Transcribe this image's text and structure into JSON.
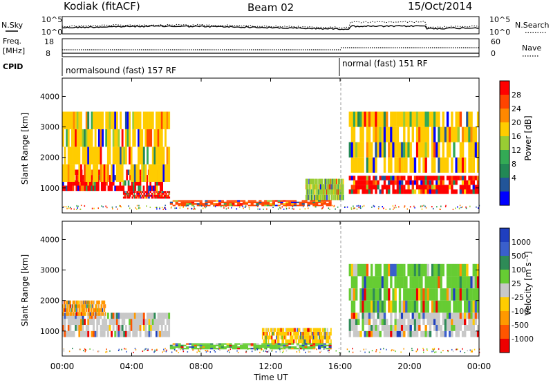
{
  "header": {
    "station": "Kodiak (fitACF)",
    "beam": "Beam 02",
    "date": "15/Oct/2014"
  },
  "noise_panel": {
    "left_label": "N.Sky",
    "right_label": "N.Search",
    "left_ticks": [
      "10^5",
      "10^0"
    ],
    "right_ticks": [
      "10^5",
      "10^0"
    ]
  },
  "freq_panel": {
    "left_label_line1": "Freq.",
    "left_label_line2": "[MHz]",
    "right_label": "Nave",
    "left_ticks": [
      "18",
      "8"
    ],
    "right_ticks": [
      "60",
      "0"
    ]
  },
  "cpid": {
    "label": "CPID",
    "modes": [
      {
        "text": "normalsound (fast) 157 RF",
        "start_hour": 0
      },
      {
        "text": "normal (fast) 151 RF",
        "start_hour": 16
      }
    ]
  },
  "power_colorbar": {
    "label": "Power [dB]",
    "ticks": [
      "28",
      "24",
      "20",
      "16",
      "12",
      "8",
      "4"
    ],
    "colors": [
      "#ff0000",
      "#ff4400",
      "#ff8800",
      "#ffcc00",
      "#99cc33",
      "#33aa55",
      "#228855",
      "#225599",
      "#0000ff"
    ]
  },
  "velocity_colorbar": {
    "label": "Velocity [m s⁻¹]",
    "ticks": [
      "1000",
      "500",
      "100",
      "25",
      "-25",
      "-100",
      "-500",
      "-1000"
    ],
    "colors": [
      "#1f3fbf",
      "#3a5fcc",
      "#2e8b57",
      "#66cc33",
      "#c8c8c8",
      "#ffcc00",
      "#ff9900",
      "#ff5500",
      "#ee0000"
    ]
  },
  "chart_data": {
    "type": "heatmap",
    "title": "Kodiak (fitACF) Beam 02 15/Oct/2014",
    "xlabel": "Time UT",
    "x_ticks": [
      "00:00",
      "04:00",
      "08:00",
      "12:00",
      "16:00",
      "20:00",
      "00:00"
    ],
    "xlim_hours": [
      0,
      24
    ],
    "panels": [
      {
        "name": "Power",
        "ylabel": "Slant Range [km]",
        "ylim_km": [
          180,
          4600
        ],
        "y_ticks": [
          "1000",
          "2000",
          "3000",
          "4000"
        ],
        "color_scale": "Power [dB]",
        "approx_regions": [
          {
            "t0": 0.0,
            "t1": 5.8,
            "r0": 900,
            "r1": 1600,
            "level": "28"
          },
          {
            "t0": 0.0,
            "t1": 6.2,
            "r0": 1200,
            "r1": 3500,
            "level": "16"
          },
          {
            "t0": 3.5,
            "t1": 6.2,
            "r0": 650,
            "r1": 900,
            "level": "28"
          },
          {
            "t0": 6.2,
            "t1": 15.5,
            "r0": 400,
            "r1": 600,
            "level": "24"
          },
          {
            "t0": 14.0,
            "t1": 16.2,
            "r0": 600,
            "r1": 1300,
            "level": "12"
          },
          {
            "t0": 16.5,
            "t1": 24.0,
            "r0": 800,
            "r1": 1400,
            "level": "28"
          },
          {
            "t0": 16.5,
            "t1": 24.0,
            "r0": 1500,
            "r1": 3500,
            "level": "16"
          }
        ]
      },
      {
        "name": "Velocity",
        "ylabel": "Slant Range [km]",
        "ylim_km": [
          180,
          4600
        ],
        "y_ticks": [
          "1000",
          "2000",
          "3000",
          "4000"
        ],
        "color_scale": "Velocity [m s⁻¹]",
        "approx_regions": [
          {
            "t0": 0.0,
            "t1": 6.2,
            "r0": 800,
            "r1": 1600,
            "level": "-25"
          },
          {
            "t0": 0.0,
            "t1": 2.5,
            "r0": 1500,
            "r1": 2000,
            "level": "-500"
          },
          {
            "t0": 6.2,
            "t1": 15.5,
            "r0": 400,
            "r1": 600,
            "level": "25"
          },
          {
            "t0": 11.5,
            "t1": 15.5,
            "r0": 600,
            "r1": 1100,
            "level": "-100"
          },
          {
            "t0": 16.5,
            "t1": 24.0,
            "r0": 800,
            "r1": 1600,
            "level": "-25"
          },
          {
            "t0": 16.5,
            "t1": 24.0,
            "r0": 1600,
            "r1": 3200,
            "level": "25"
          }
        ]
      }
    ]
  }
}
